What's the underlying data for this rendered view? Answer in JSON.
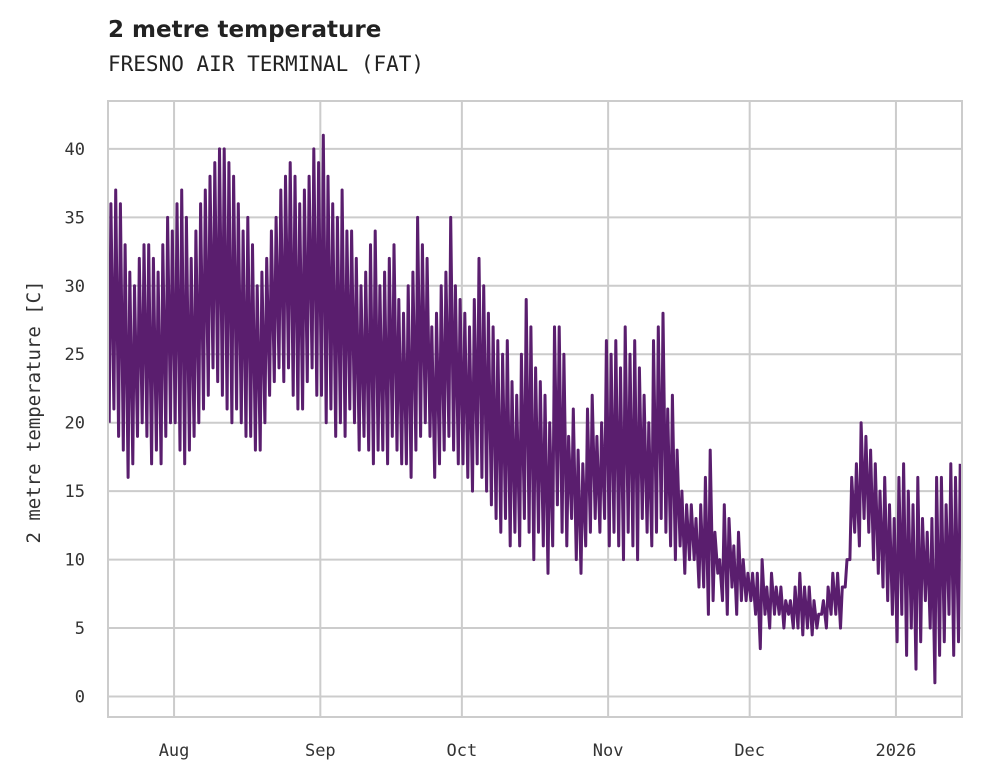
{
  "chart_data": {
    "type": "line",
    "title": "2 metre temperature",
    "subtitle": "FRESNO AIR TERMINAL (FAT)",
    "xlabel": "",
    "ylabel": "2 metre temperature [C]",
    "start_date": "2025-07-18",
    "xlim": [
      "2025-07-18",
      "2026-01-15"
    ],
    "ylim": [
      -1.5,
      43.5
    ],
    "grid": true,
    "color": "#5a1e6e",
    "x_ticks": [
      {
        "date": "2025-08-01",
        "label": "Aug"
      },
      {
        "date": "2025-09-01",
        "label": "Sep"
      },
      {
        "date": "2025-10-01",
        "label": "Oct"
      },
      {
        "date": "2025-11-01",
        "label": "Nov"
      },
      {
        "date": "2025-12-01",
        "label": "Dec"
      },
      {
        "date": "2026-01-01",
        "label": "2026"
      }
    ],
    "y_ticks": [
      0,
      5,
      10,
      15,
      20,
      25,
      30,
      35,
      40
    ],
    "series": [
      {
        "name": "2 metre temperature",
        "daily_max": [
          36,
          37,
          36,
          33,
          31,
          30,
          32,
          33,
          33,
          32,
          31,
          33,
          35,
          34,
          36,
          37,
          35,
          32,
          34,
          36,
          37,
          38,
          39,
          40,
          40,
          39,
          38,
          36,
          34,
          35,
          33,
          30,
          31,
          32,
          34,
          35,
          37,
          38,
          39,
          38,
          36,
          37,
          38,
          40,
          39,
          41,
          38,
          36,
          35,
          37,
          34,
          34,
          32,
          30,
          31,
          33,
          34,
          30,
          31,
          32,
          33,
          29,
          28,
          30,
          31,
          35,
          33,
          32,
          27,
          28,
          30,
          31,
          35,
          30,
          29,
          28,
          27,
          29,
          32,
          30,
          28,
          27,
          26,
          25,
          26,
          23,
          22,
          25,
          29,
          27,
          24,
          23,
          22,
          20,
          27,
          27,
          25,
          19,
          21,
          18,
          17,
          21,
          22,
          19,
          20,
          26,
          25,
          26,
          24,
          27,
          25,
          26,
          24,
          22,
          20,
          26,
          27,
          28,
          21,
          22,
          18,
          15,
          14,
          14,
          13,
          14,
          16,
          18,
          12,
          10,
          14,
          13,
          11,
          12,
          10,
          9,
          9,
          9,
          10,
          8,
          9,
          8,
          8,
          7,
          7,
          8,
          9,
          8,
          8,
          7,
          6,
          7,
          8,
          9,
          9,
          8,
          10,
          16,
          17,
          20,
          19,
          18,
          17,
          15,
          16,
          14,
          13,
          16,
          17,
          15,
          14,
          16,
          13,
          12,
          13,
          16,
          16,
          14,
          17,
          16,
          17
        ],
        "daily_min": [
          20,
          21,
          19,
          18,
          16,
          17,
          19,
          20,
          19,
          17,
          18,
          17,
          19,
          20,
          20,
          18,
          17,
          18,
          19,
          20,
          21,
          22,
          24,
          23,
          22,
          21,
          20,
          21,
          20,
          19,
          19,
          18,
          18,
          20,
          22,
          23,
          24,
          23,
          24,
          22,
          21,
          21,
          23,
          24,
          22,
          22,
          20,
          21,
          19,
          20,
          19,
          21,
          20,
          18,
          19,
          18,
          17,
          18,
          18,
          17,
          19,
          18,
          17,
          17,
          16,
          18,
          19,
          20,
          19,
          16,
          17,
          18,
          19,
          18,
          17,
          17,
          16,
          15,
          17,
          16,
          15,
          14,
          13,
          12,
          13,
          11,
          12,
          11,
          13,
          12,
          10,
          12,
          11,
          9,
          11,
          14,
          12,
          11,
          13,
          10,
          9,
          11,
          12,
          13,
          12,
          13,
          11,
          12,
          11,
          10,
          12,
          11,
          10,
          13,
          12,
          11,
          12,
          13,
          12,
          11,
          10,
          11,
          9,
          10,
          10,
          8,
          8,
          6,
          7,
          9,
          7,
          6,
          8,
          6,
          7,
          7,
          7,
          6,
          3.5,
          6,
          5,
          6,
          6,
          5,
          6,
          5,
          5,
          4.5,
          5,
          4.5,
          5,
          6,
          5,
          6,
          6,
          5,
          8,
          10,
          12,
          11,
          13,
          12,
          10,
          9,
          8,
          7,
          6,
          4,
          6,
          3,
          5,
          2,
          4,
          7,
          5,
          1,
          3,
          4,
          6,
          3,
          4
        ]
      }
    ]
  }
}
